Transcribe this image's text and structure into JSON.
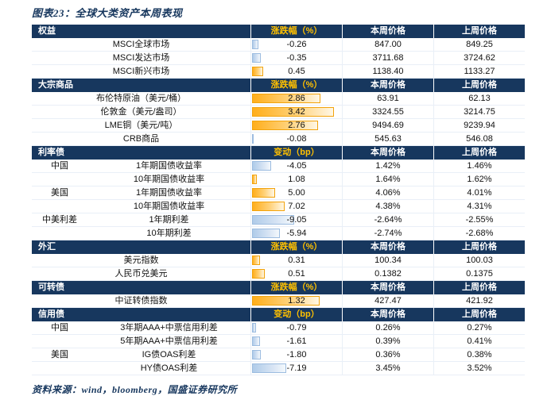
{
  "title": "图表23：全球大类资产本周表现",
  "source": "资料来源：wind，bloomberg，国盛证券研究所",
  "colors": {
    "header_bg": "#17375E",
    "header_text": "#FFFFFF",
    "change_header_text": "#FFC000",
    "positive_bar": "#FFAE1B",
    "negative_bar": "#AFCBE9"
  },
  "chart_data": {
    "type": "table",
    "title": "图表23：全球大类资产本周表现",
    "this_week_label": "本周价格",
    "last_week_label": "上周价格",
    "sections": [
      {
        "label": "权益",
        "change_header": "涨跌幅（%）",
        "rows": [
          {
            "category": "",
            "name": "MSCI全球市场",
            "change": "-0.26",
            "this_week": "847.00",
            "last_week": "849.25"
          },
          {
            "category": "",
            "name": "MSCI发达市场",
            "change": "-0.35",
            "this_week": "3711.68",
            "last_week": "3724.62"
          },
          {
            "category": "",
            "name": "MSCI新兴市场",
            "change": "0.45",
            "this_week": "1138.40",
            "last_week": "1133.27"
          }
        ]
      },
      {
        "label": "大宗商品",
        "change_header": "涨跌幅（%）",
        "rows": [
          {
            "category": "",
            "name": "布伦特原油（美元/桶）",
            "change": "2.86",
            "this_week": "63.91",
            "last_week": "62.13"
          },
          {
            "category": "",
            "name": "伦敦金（美元/盎司）",
            "change": "3.42",
            "this_week": "3324.55",
            "last_week": "3214.75"
          },
          {
            "category": "",
            "name": "LME铜（美元/吨）",
            "change": "2.76",
            "this_week": "9494.69",
            "last_week": "9239.94"
          },
          {
            "category": "",
            "name": "CRB商品",
            "change": "-0.08",
            "this_week": "545.63",
            "last_week": "546.08"
          }
        ]
      },
      {
        "label": "利率债",
        "change_header": "变动（bp）",
        "rows": [
          {
            "category": "中国",
            "name": "1年期国债收益率",
            "change": "-4.05",
            "this_week": "1.42%",
            "last_week": "1.46%"
          },
          {
            "category": "",
            "name": "10年期国债收益率",
            "change": "1.08",
            "this_week": "1.64%",
            "last_week": "1.62%"
          },
          {
            "category": "美国",
            "name": "1年期国债收益率",
            "change": "5.00",
            "this_week": "4.06%",
            "last_week": "4.01%"
          },
          {
            "category": "",
            "name": "10年期国债收益率",
            "change": "7.02",
            "this_week": "4.38%",
            "last_week": "4.31%"
          },
          {
            "category": "中美利差",
            "name": "1年期利差",
            "change": "-9.05",
            "this_week": "-2.64%",
            "last_week": "-2.55%"
          },
          {
            "category": "",
            "name": "10年期利差",
            "change": "-5.94",
            "this_week": "-2.74%",
            "last_week": "-2.68%"
          }
        ]
      },
      {
        "label": "外汇",
        "change_header": "涨跌幅（%）",
        "rows": [
          {
            "category": "",
            "name": "美元指数",
            "change": "0.31",
            "this_week": "100.34",
            "last_week": "100.03"
          },
          {
            "category": "",
            "name": "人民币兑美元",
            "change": "0.51",
            "this_week": "0.1382",
            "last_week": "0.1375"
          }
        ]
      },
      {
        "label": "可转债",
        "change_header": "涨跌幅（%）",
        "rows": [
          {
            "category": "",
            "name": "中证转债指数",
            "change": "1.32",
            "this_week": "427.47",
            "last_week": "421.92"
          }
        ]
      },
      {
        "label": "信用债",
        "change_header": "变动（bp）",
        "rows": [
          {
            "category": "中国",
            "name": "3年期AAA+中票信用利差",
            "change": "-0.79",
            "this_week": "0.26%",
            "last_week": "0.27%"
          },
          {
            "category": "",
            "name": "5年期AAA+中票信用利差",
            "change": "-1.61",
            "this_week": "0.39%",
            "last_week": "0.41%"
          },
          {
            "category": "美国",
            "name": "IG债OAS利差",
            "change": "-1.80",
            "this_week": "0.36%",
            "last_week": "0.38%"
          },
          {
            "category": "",
            "name": "HY债OAS利差",
            "change": "-7.19",
            "this_week": "3.45%",
            "last_week": "3.52%"
          }
        ]
      }
    ]
  }
}
